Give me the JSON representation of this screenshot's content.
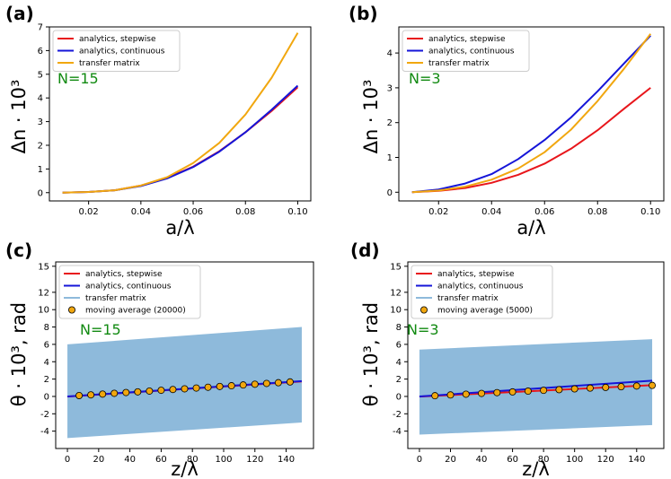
{
  "chart_data": [
    {
      "panel_label": "(a)",
      "type": "line",
      "xlabel": "a/λ",
      "ylabel": "Δn · 10³",
      "xlim": [
        0.005,
        0.105
      ],
      "ylim": [
        -0.35,
        7.0
      ],
      "xticks": [
        "0.02",
        "0.04",
        "0.06",
        "0.08",
        "0.10"
      ],
      "yticks": [
        "0",
        "1",
        "2",
        "3",
        "4",
        "5",
        "6",
        "7"
      ],
      "annotation": "N=15",
      "legend_position": "top-left",
      "series": [
        {
          "name": "analytics, stepwise",
          "color": "#e8161b",
          "x": [
            0.01,
            0.02,
            0.03,
            0.04,
            0.05,
            0.06,
            0.07,
            0.08,
            0.09,
            0.1
          ],
          "y": [
            0.0,
            0.03,
            0.1,
            0.3,
            0.62,
            1.1,
            1.75,
            2.55,
            3.45,
            4.45
          ]
        },
        {
          "name": "analytics, continuous",
          "color": "#1515d8",
          "x": [
            0.01,
            0.02,
            0.03,
            0.04,
            0.05,
            0.06,
            0.07,
            0.08,
            0.09,
            0.1
          ],
          "y": [
            0.0,
            0.03,
            0.1,
            0.28,
            0.6,
            1.08,
            1.73,
            2.55,
            3.5,
            4.52
          ]
        },
        {
          "name": "transfer matrix",
          "color": "#f1a70f",
          "x": [
            0.01,
            0.02,
            0.03,
            0.04,
            0.05,
            0.06,
            0.07,
            0.08,
            0.09,
            0.1
          ],
          "y": [
            0.0,
            0.03,
            0.1,
            0.3,
            0.65,
            1.25,
            2.1,
            3.3,
            4.85,
            6.75
          ]
        }
      ]
    },
    {
      "panel_label": "(b)",
      "type": "line",
      "xlabel": "a/λ",
      "ylabel": "Δn · 10³",
      "xlim": [
        0.005,
        0.105
      ],
      "ylim": [
        -0.25,
        4.75
      ],
      "xticks": [
        "0.02",
        "0.04",
        "0.06",
        "0.08",
        "0.10"
      ],
      "yticks": [
        "0",
        "1",
        "2",
        "3",
        "4"
      ],
      "annotation": "N=3",
      "legend_position": "top-left",
      "series": [
        {
          "name": "analytics, stepwise",
          "color": "#e8161b",
          "x": [
            0.01,
            0.02,
            0.03,
            0.04,
            0.05,
            0.06,
            0.07,
            0.08,
            0.09,
            0.1
          ],
          "y": [
            0.0,
            0.04,
            0.12,
            0.27,
            0.5,
            0.82,
            1.25,
            1.78,
            2.4,
            3.0
          ]
        },
        {
          "name": "analytics, continuous",
          "color": "#1515d8",
          "x": [
            0.01,
            0.02,
            0.03,
            0.04,
            0.05,
            0.06,
            0.07,
            0.08,
            0.09,
            0.1
          ],
          "y": [
            0.0,
            0.08,
            0.25,
            0.52,
            0.95,
            1.5,
            2.15,
            2.9,
            3.7,
            4.5
          ]
        },
        {
          "name": "transfer matrix",
          "color": "#f1a70f",
          "x": [
            0.01,
            0.02,
            0.03,
            0.04,
            0.05,
            0.06,
            0.07,
            0.08,
            0.09,
            0.1
          ],
          "y": [
            0.0,
            0.05,
            0.16,
            0.36,
            0.68,
            1.15,
            1.8,
            2.62,
            3.55,
            4.55
          ]
        }
      ]
    },
    {
      "panel_label": "(c)",
      "type": "line",
      "xlabel": "z/λ",
      "ylabel": "θ · 10³, rad",
      "xlim": [
        -7.5,
        157.5
      ],
      "ylim": [
        -6.0,
        15.5
      ],
      "xticks": [
        "0",
        "20",
        "40",
        "60",
        "80",
        "100",
        "120",
        "140"
      ],
      "yticks": [
        "-4",
        "-2",
        "0",
        "2",
        "4",
        "6",
        "8",
        "10",
        "12",
        "15"
      ],
      "annotation": "N=15",
      "legend_position": "top-left",
      "band": {
        "name": "transfer matrix",
        "color": "#8ebadb",
        "x": [
          0,
          150
        ],
        "upper": [
          6.0,
          8.0
        ],
        "lower": [
          -4.8,
          -3.0
        ]
      },
      "series": [
        {
          "name": "analytics, stepwise",
          "color": "#e8161b",
          "x": [
            0,
            150
          ],
          "y": [
            -0.02,
            1.72
          ]
        },
        {
          "name": "analytics, continuous",
          "color": "#1515d8",
          "x": [
            0,
            150
          ],
          "y": [
            0.0,
            1.76
          ]
        }
      ],
      "points": {
        "name": "moving average (20000)",
        "color": "#f1a70f",
        "edge": "#000000",
        "x": [
          7.5,
          15,
          22.5,
          30,
          37.5,
          45,
          52.5,
          60,
          67.5,
          75,
          82.5,
          90,
          97.5,
          105,
          112.5,
          120,
          127.5,
          135,
          142.5
        ],
        "y": [
          0.1,
          0.18,
          0.27,
          0.36,
          0.45,
          0.53,
          0.62,
          0.71,
          0.8,
          0.88,
          0.97,
          1.06,
          1.15,
          1.23,
          1.32,
          1.41,
          1.5,
          1.58,
          1.67
        ]
      }
    },
    {
      "panel_label": "(d)",
      "type": "line",
      "xlabel": "z/λ",
      "ylabel": "θ · 10³, rad",
      "xlim": [
        -7.5,
        157.5
      ],
      "ylim": [
        -6.0,
        15.5
      ],
      "xticks": [
        "0",
        "20",
        "40",
        "60",
        "80",
        "100",
        "120",
        "140"
      ],
      "yticks": [
        "-4",
        "-2",
        "0",
        "2",
        "4",
        "6",
        "8",
        "10",
        "12",
        "15"
      ],
      "annotation": "N=3",
      "legend_position": "top-left",
      "band": {
        "name": "transfer matrix",
        "color": "#8ebadb",
        "x": [
          0,
          150
        ],
        "upper": [
          5.4,
          6.6
        ],
        "lower": [
          -4.4,
          -3.3
        ]
      },
      "series": [
        {
          "name": "analytics, stepwise",
          "color": "#e8161b",
          "x": [
            0,
            150
          ],
          "y": [
            -0.02,
            1.3
          ]
        },
        {
          "name": "analytics, continuous",
          "color": "#1515d8",
          "x": [
            0,
            150
          ],
          "y": [
            0.0,
            1.82
          ]
        }
      ],
      "points": {
        "name": "moving average (5000)",
        "color": "#f1a70f",
        "edge": "#000000",
        "x": [
          10,
          20,
          30,
          40,
          50,
          60,
          70,
          80,
          90,
          100,
          110,
          120,
          130,
          140,
          150
        ],
        "y": [
          0.08,
          0.17,
          0.26,
          0.35,
          0.44,
          0.52,
          0.61,
          0.7,
          0.78,
          0.87,
          0.96,
          1.04,
          1.12,
          1.2,
          1.27
        ]
      }
    }
  ]
}
